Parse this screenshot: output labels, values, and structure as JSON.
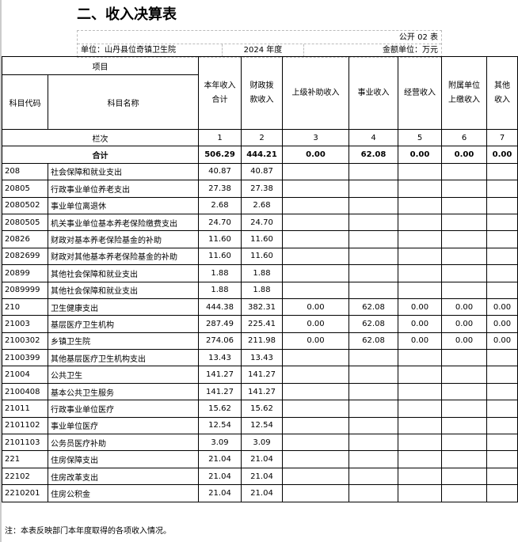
{
  "title": "二、收入决算表",
  "form_no": "公开 02 表",
  "unit": "单位：山丹县位奇镇卫生院",
  "year": "2024 年度",
  "amount_unit": "金额单位：万元",
  "headers": {
    "item": "项目",
    "code": "科目代码",
    "name": "科目名称",
    "cols": [
      "本年收入合计",
      "财政拨款收入",
      "上级补助收入",
      "事业收入",
      "经营收入",
      "附属单位上缴收入",
      "其他收入"
    ],
    "col_lines": [
      [
        "本年收入",
        "合计"
      ],
      [
        "财政拨",
        "款收入"
      ],
      [
        "上级补助收入"
      ],
      [
        "事业收入"
      ],
      [
        "经营收入"
      ],
      [
        "附属单位",
        "上缴收入"
      ],
      [
        "其他",
        "收入"
      ]
    ]
  },
  "column_index": {
    "label": "栏次",
    "nums": [
      "1",
      "2",
      "3",
      "4",
      "5",
      "6",
      "7"
    ]
  },
  "total": {
    "label": "合计",
    "values": [
      "506.29",
      "444.21",
      "0.00",
      "62.08",
      "0.00",
      "0.00",
      "0.00"
    ]
  },
  "rows": [
    {
      "code": "208",
      "name": "社会保障和就业支出",
      "v": [
        "40.87",
        "40.87",
        "",
        "",
        "",
        "",
        ""
      ]
    },
    {
      "code": "20805",
      "name": "行政事业单位养老支出",
      "v": [
        "27.38",
        "27.38",
        "",
        "",
        "",
        "",
        ""
      ]
    },
    {
      "code": "2080502",
      "name": "事业单位离退休",
      "v": [
        "2.68",
        "2.68",
        "",
        "",
        "",
        "",
        ""
      ]
    },
    {
      "code": "2080505",
      "name": "机关事业单位基本养老保险缴费支出",
      "v": [
        "24.70",
        "24.70",
        "",
        "",
        "",
        "",
        ""
      ]
    },
    {
      "code": "20826",
      "name": "财政对基本养老保险基金的补助",
      "v": [
        "11.60",
        "11.60",
        "",
        "",
        "",
        "",
        ""
      ]
    },
    {
      "code": "2082699",
      "name": "财政对其他基本养老保险基金的补助",
      "v": [
        "11.60",
        "11.60",
        "",
        "",
        "",
        "",
        ""
      ]
    },
    {
      "code": "20899",
      "name": "其他社会保障和就业支出",
      "v": [
        "1.88",
        "1.88",
        "",
        "",
        "",
        "",
        ""
      ]
    },
    {
      "code": "2089999",
      "name": "其他社会保障和就业支出",
      "v": [
        "1.88",
        "1.88",
        "",
        "",
        "",
        "",
        ""
      ]
    },
    {
      "code": "210",
      "name": "卫生健康支出",
      "v": [
        "444.38",
        "382.31",
        "0.00",
        "62.08",
        "0.00",
        "0.00",
        "0.00"
      ]
    },
    {
      "code": "21003",
      "name": "基层医疗卫生机构",
      "v": [
        "287.49",
        "225.41",
        "0.00",
        "62.08",
        "0.00",
        "0.00",
        "0.00"
      ]
    },
    {
      "code": "2100302",
      "name": "乡镇卫生院",
      "v": [
        "274.06",
        "211.98",
        "0.00",
        "62.08",
        "0.00",
        "0.00",
        "0.00"
      ]
    },
    {
      "code": "2100399",
      "name": "其他基层医疗卫生机构支出",
      "v": [
        "13.43",
        "13.43",
        "",
        "",
        "",
        "",
        ""
      ]
    },
    {
      "code": "21004",
      "name": "公共卫生",
      "v": [
        "141.27",
        "141.27",
        "",
        "",
        "",
        "",
        ""
      ]
    },
    {
      "code": "2100408",
      "name": "基本公共卫生服务",
      "v": [
        "141.27",
        "141.27",
        "",
        "",
        "",
        "",
        ""
      ]
    },
    {
      "code": "21011",
      "name": "行政事业单位医疗",
      "v": [
        "15.62",
        "15.62",
        "",
        "",
        "",
        "",
        ""
      ]
    },
    {
      "code": "2101102",
      "name": "事业单位医疗",
      "v": [
        "12.54",
        "12.54",
        "",
        "",
        "",
        "",
        ""
      ]
    },
    {
      "code": "2101103",
      "name": "公务员医疗补助",
      "v": [
        "3.09",
        "3.09",
        "",
        "",
        "",
        "",
        ""
      ]
    },
    {
      "code": "221",
      "name": "住房保障支出",
      "v": [
        "21.04",
        "21.04",
        "",
        "",
        "",
        "",
        ""
      ]
    },
    {
      "code": "22102",
      "name": "住房改革支出",
      "v": [
        "21.04",
        "21.04",
        "",
        "",
        "",
        "",
        ""
      ]
    },
    {
      "code": "2210201",
      "name": "住房公积金",
      "v": [
        "21.04",
        "21.04",
        "",
        "",
        "",
        "",
        ""
      ]
    }
  ],
  "note": "注：本表反映部门本年度取得的各项收入情况。"
}
